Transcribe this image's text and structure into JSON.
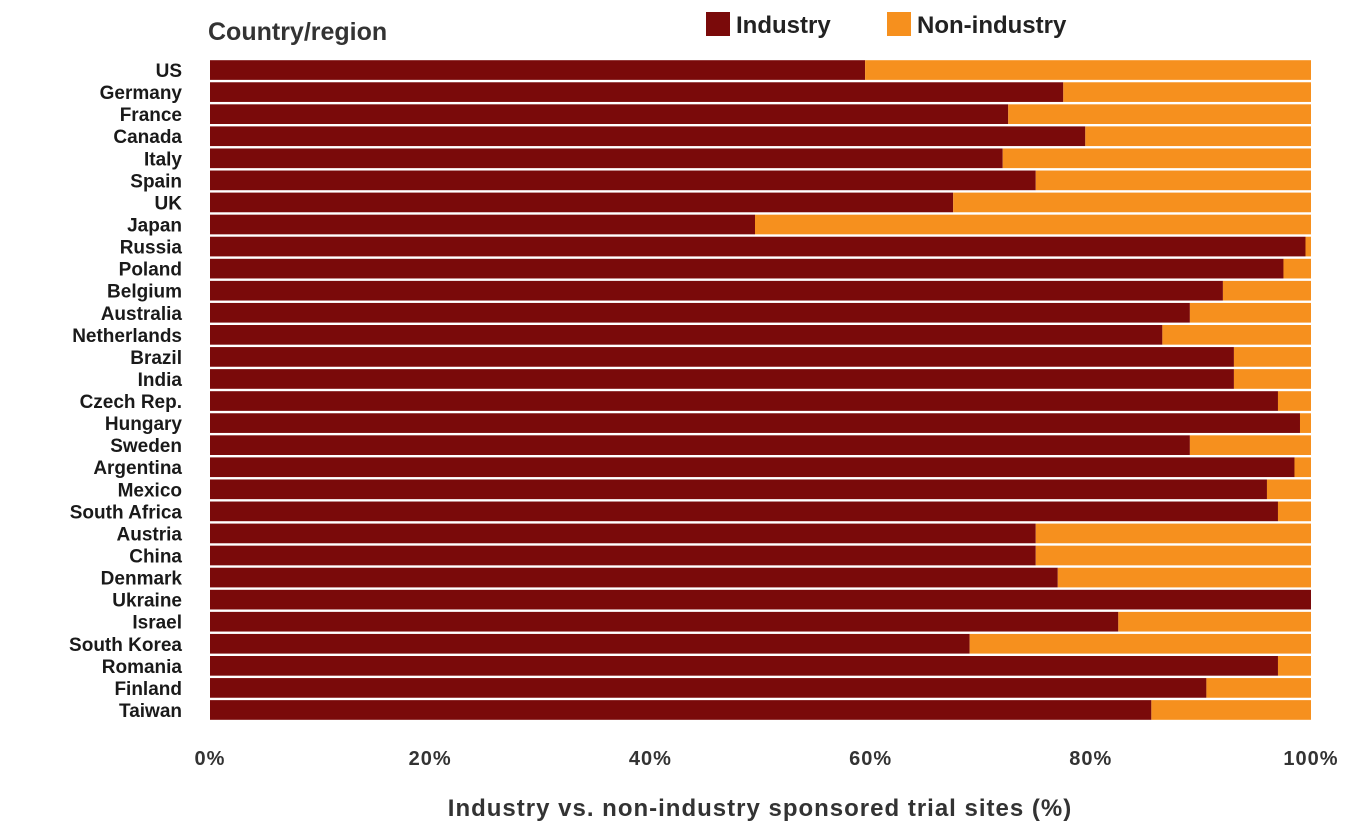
{
  "chart_data": {
    "type": "bar",
    "orientation": "horizontal",
    "stacked": "percent",
    "categories": [
      "US",
      "Germany",
      "France",
      "Canada",
      "Italy",
      "Spain",
      "UK",
      "Japan",
      "Russia",
      "Poland",
      "Belgium",
      "Australia",
      "Netherlands",
      "Brazil",
      "India",
      "Czech Rep.",
      "Hungary",
      "Sweden",
      "Argentina",
      "Mexico",
      "South Africa",
      "Austria",
      "China",
      "Denmark",
      "Ukraine",
      "Israel",
      "South Korea",
      "Romania",
      "Finland",
      "Taiwan"
    ],
    "series": [
      {
        "name": "Industry",
        "color": "#7a0a0a",
        "values": [
          59.5,
          77.5,
          72.5,
          79.5,
          72,
          75,
          67.5,
          49.5,
          99.5,
          97.5,
          92,
          89,
          86.5,
          93,
          93,
          97,
          99,
          89,
          98.5,
          96,
          97,
          75,
          75,
          77,
          100,
          82.5,
          69,
          97,
          90.5,
          85.5
        ]
      },
      {
        "name": "Non-industry",
        "color": "#f6901e",
        "values": [
          40.5,
          22.5,
          27.5,
          20.5,
          28,
          25,
          32.5,
          50.5,
          0.5,
          2.5,
          8,
          11,
          13.5,
          7,
          7,
          3,
          1,
          11,
          1.5,
          4,
          3,
          25,
          25,
          23,
          0,
          17.5,
          31,
          3,
          9.5,
          14.5
        ]
      }
    ],
    "xlabel": "Industry vs. non-industry sponsored trial sites (%)",
    "ylabel": "Country/region",
    "xlim": [
      0,
      100
    ],
    "xticks": [
      "0%",
      "20%",
      "40%",
      "60%",
      "80%",
      "100%"
    ],
    "legend_position": "top",
    "grid": false
  }
}
